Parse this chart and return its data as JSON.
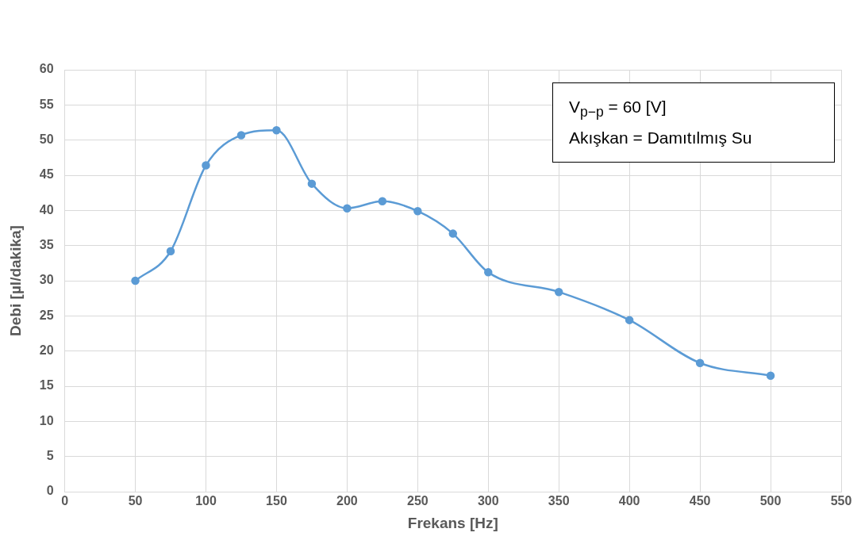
{
  "chart_data": {
    "type": "line",
    "xlabel": "Frekans [Hz]",
    "ylabel": "Debi [µl/dakika]",
    "annotations": [
      "V$_{p−p}$ = 60 [V]",
      "Akışkan = Damıtılmış Su"
    ],
    "x": [
      50,
      75,
      100,
      125,
      150,
      175,
      200,
      225,
      250,
      275,
      300,
      350,
      400,
      450,
      500
    ],
    "series": [
      {
        "color": "#5b9bd5",
        "values": [
          30,
          34.2,
          46.4,
          50.7,
          51.4,
          43.8,
          40.3,
          41.3,
          39.9,
          36.7,
          31.2,
          28.4,
          24.4,
          18.3,
          16.5
        ]
      }
    ],
    "xlim": [
      0,
      550
    ],
    "xticks": [
      0,
      50,
      100,
      150,
      200,
      250,
      300,
      350,
      400,
      450,
      500,
      550
    ],
    "ylim": [
      0,
      60
    ],
    "yticks": [
      0,
      5,
      10,
      15,
      20,
      25,
      30,
      35,
      40,
      45,
      50,
      55,
      60
    ],
    "grid": true,
    "legend": false,
    "marker": "circle",
    "line_style": "solid"
  }
}
